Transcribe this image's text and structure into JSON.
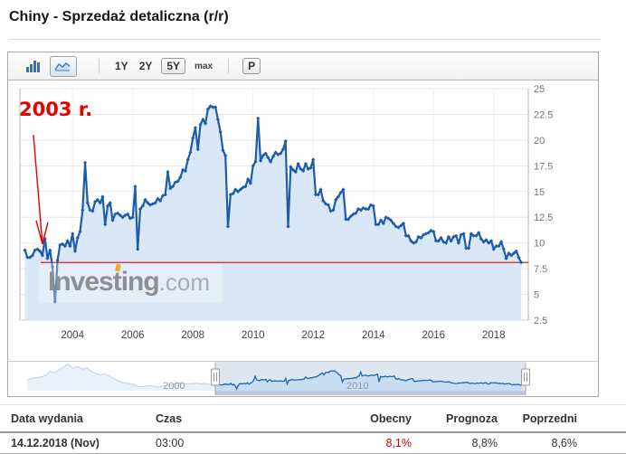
{
  "header": {
    "title": "Chiny - Sprzedaż detaliczna (r/r)"
  },
  "toolbar": {
    "ranges": [
      "1Y",
      "2Y",
      "5Y",
      "max"
    ],
    "selected_range": "5Y",
    "settings_label": "P"
  },
  "chart_data": {
    "type": "area",
    "title": "Chiny - Sprzedaż detaliczna (r/r)",
    "unit": "%",
    "x_start_year": 2002.4167,
    "points_per_year": 12,
    "values": [
      9.3,
      8.6,
      8.6,
      8.8,
      9.3,
      9.4,
      9.2,
      8.8,
      10.4,
      8.5,
      9.3,
      7.7,
      4.3,
      8.3,
      9.8,
      9.9,
      9.7,
      10.2,
      9.7,
      10.9,
      9.2,
      10.5,
      11.1,
      13.2,
      17.8,
      13.9,
      13.2,
      13.1,
      14.0,
      14.2,
      13.9,
      14.5,
      11.8,
      13.6,
      13.9,
      12.2,
      12.8,
      12.9,
      12.7,
      12.5,
      12.7,
      12.8,
      12.4,
      12.5,
      15.5,
      9.4,
      13.3,
      13.6,
      14.2,
      13.9,
      13.7,
      13.8,
      13.9,
      14.3,
      14.1,
      14.6,
      14.7,
      16.9,
      15.3,
      15.5,
      15.9,
      16.0,
      16.4,
      17.1,
      17.0,
      18.1,
      18.8,
      20.2,
      21.2,
      19.1,
      21.5,
      22.0,
      21.6,
      23.0,
      23.3,
      23.2,
      23.2,
      22.0,
      20.8,
      19.0,
      18.5,
      11.6,
      14.7,
      14.8,
      15.2,
      15.0,
      15.2,
      15.4,
      15.5,
      16.2,
      15.8,
      17.5,
      17.9,
      22.1,
      18.0,
      18.5,
      18.7,
      18.3,
      17.9,
      18.4,
      18.8,
      18.6,
      18.7,
      19.1,
      19.9,
      11.6,
      17.4,
      17.1,
      16.9,
      17.7,
      17.2,
      17.0,
      17.7,
      17.2,
      17.3,
      18.1,
      14.7,
      14.7,
      15.2,
      14.1,
      13.8,
      13.7,
      13.1,
      13.2,
      14.2,
      14.5,
      14.9,
      15.2,
      12.3,
      12.3,
      12.6,
      12.8,
      12.9,
      13.3,
      13.2,
      13.4,
      13.3,
      13.3,
      13.7,
      13.6,
      11.8,
      11.8,
      12.2,
      11.9,
      12.5,
      12.4,
      12.2,
      11.9,
      11.6,
      11.5,
      11.7,
      11.9,
      10.7,
      10.7,
      10.2,
      10.0,
      10.1,
      10.6,
      10.5,
      10.8,
      10.9,
      11.0,
      11.2,
      11.1,
      10.2,
      10.2,
      10.5,
      10.1,
      10.0,
      10.6,
      10.2,
      10.6,
      10.7,
      10.0,
      10.8,
      10.9,
      9.5,
      9.5,
      10.9,
      10.7,
      10.7,
      11.0,
      10.4,
      10.1,
      10.3,
      10.0,
      10.2,
      9.4,
      9.7,
      9.7,
      10.1,
      9.4,
      8.5,
      9.0,
      8.8,
      9.0,
      9.2,
      8.6,
      8.1
    ],
    "x_ticks": [
      "2004",
      "2006",
      "2008",
      "2010",
      "2012",
      "2014",
      "2016",
      "2018"
    ],
    "y_ticks": [
      "2.5",
      "5",
      "7.5",
      "10",
      "12.5",
      "15",
      "17.5",
      "20",
      "22.5",
      "25"
    ],
    "ylim": [
      2.5,
      25
    ],
    "xlim": [
      2002.25,
      2019.15
    ],
    "current_value_line": 8.1,
    "annotation": {
      "text": "2003 r.",
      "from_year": 2002.7,
      "from_value": 20.5,
      "to_year": 2003.0,
      "to_value": 9.9
    },
    "watermark": {
      "main": "Investing",
      "suffix": ".com"
    },
    "colors": {
      "line": "#1b5dab",
      "fill": "#d9e7f7",
      "red_line": "#e02222",
      "annotation": "#e60000",
      "grid": "#e7e7e7",
      "axis": "#b0b0b0"
    },
    "navigator": {
      "labels": [
        {
          "text": "2000",
          "year": 2000
        },
        {
          "text": "2010",
          "year": 2010
        }
      ],
      "xlim": [
        1991.85,
        2022.3
      ],
      "ylim": [
        2.5,
        31
      ],
      "selected_range_years": [
        2002.25,
        2019.15
      ],
      "early_start_year": 1992.0,
      "early_points_per_year": 4,
      "early_values": [
        14,
        15.5,
        16.2,
        17.0,
        18.5,
        23.0,
        21.0,
        24.5,
        27.5,
        30.5,
        26.0,
        28.0,
        25.0,
        26.8,
        22.5,
        20.5,
        19.0,
        20.1,
        17.5,
        15.0,
        12.5,
        11.0,
        10.2,
        9.5,
        7.2,
        6.8,
        7.5,
        8.0,
        6.5,
        6.8,
        7.8,
        8.5,
        9.2,
        10.5,
        9.7,
        9.9,
        10.0,
        10.3,
        9.8,
        10.1,
        8.6
      ]
    }
  },
  "table": {
    "headers": [
      "Data wydania",
      "Czas",
      "Obecny",
      "Prognoza",
      "Poprzedni"
    ],
    "rows": [
      [
        "14.12.2018 (Nov)",
        "03:00",
        "8,1%",
        "8,8%",
        "8,6%"
      ]
    ],
    "actual_color": "#cc0000"
  }
}
